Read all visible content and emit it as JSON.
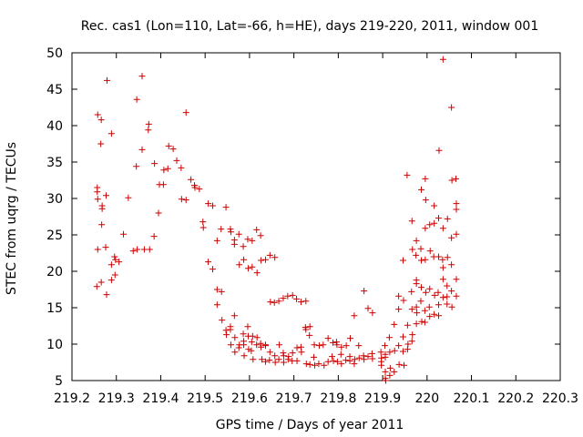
{
  "chart_data": {
    "type": "scatter",
    "title": "Rec. cas1 (Lon=110, Lat=-66, h=HE), days 219-220, 2011, window 001",
    "xlabel": "GPS time / Days of year 2011",
    "ylabel": "STEC from uqrg / TECUs",
    "xlim": [
      219.2,
      220.3
    ],
    "ylim": [
      5,
      50
    ],
    "xticks": [
      219.2,
      219.3,
      219.4,
      219.5,
      219.6,
      219.7,
      219.8,
      219.9,
      220,
      220.1,
      220.2,
      220.3
    ],
    "xtick_labels": [
      "219.2",
      "219.3",
      "219.4",
      "219.5",
      "219.6",
      "219.7",
      "219.8",
      "219.9",
      "220",
      "220.1",
      "220.2",
      "220.3"
    ],
    "yticks": [
      5,
      10,
      15,
      20,
      25,
      30,
      35,
      40,
      45,
      50
    ],
    "ytick_labels": [
      "5",
      "10",
      "15",
      "20",
      "25",
      "30",
      "35",
      "40",
      "45",
      "50"
    ],
    "grid": false,
    "marker": "+",
    "marker_color": "#cc0000",
    "points": [
      [
        219.258,
        41.5
      ],
      [
        219.266,
        40.8
      ],
      [
        219.279,
        46.2
      ],
      [
        219.289,
        38.9
      ],
      [
        219.346,
        43.6
      ],
      [
        219.358,
        46.8
      ],
      [
        219.373,
        40.2
      ],
      [
        219.372,
        39.4
      ],
      [
        219.457,
        41.8
      ],
      [
        219.257,
        31.5
      ],
      [
        219.257,
        30.9
      ],
      [
        219.258,
        29.9
      ],
      [
        219.265,
        37.5
      ],
      [
        219.268,
        29.0
      ],
      [
        219.268,
        28.6
      ],
      [
        219.267,
        26.4
      ],
      [
        219.277,
        30.4
      ],
      [
        219.258,
        23.0
      ],
      [
        219.256,
        17.9
      ],
      [
        219.266,
        18.5
      ],
      [
        219.276,
        23.3
      ],
      [
        219.278,
        16.8
      ],
      [
        219.289,
        20.9
      ],
      [
        219.296,
        22.0
      ],
      [
        219.298,
        21.6
      ],
      [
        219.297,
        19.5
      ],
      [
        219.289,
        18.8
      ],
      [
        219.306,
        21.3
      ],
      [
        219.316,
        25.1
      ],
      [
        219.327,
        30.1
      ],
      [
        219.338,
        22.8
      ],
      [
        219.345,
        34.4
      ],
      [
        219.347,
        23.0
      ],
      [
        219.358,
        36.7
      ],
      [
        219.363,
        23.0
      ],
      [
        219.375,
        23.0
      ],
      [
        219.386,
        34.8
      ],
      [
        219.385,
        24.8
      ],
      [
        219.395,
        28.0
      ],
      [
        219.397,
        31.9
      ],
      [
        219.406,
        31.9
      ],
      [
        219.407,
        33.9
      ],
      [
        219.416,
        34.1
      ],
      [
        219.418,
        37.2
      ],
      [
        219.428,
        36.8
      ],
      [
        219.436,
        35.2
      ],
      [
        219.446,
        34.2
      ],
      [
        219.447,
        29.9
      ],
      [
        219.457,
        29.8
      ],
      [
        219.468,
        32.6
      ],
      [
        219.477,
        31.5
      ],
      [
        219.476,
        31.8
      ],
      [
        219.487,
        31.3
      ],
      [
        219.495,
        26.8
      ],
      [
        219.496,
        26.0
      ],
      [
        219.507,
        29.3
      ],
      [
        219.507,
        21.3
      ],
      [
        219.517,
        29.0
      ],
      [
        219.517,
        20.3
      ],
      [
        219.527,
        24.2
      ],
      [
        219.527,
        17.5
      ],
      [
        219.527,
        15.4
      ],
      [
        219.537,
        17.2
      ],
      [
        219.536,
        25.8
      ],
      [
        219.538,
        13.3
      ],
      [
        219.547,
        28.8
      ],
      [
        219.547,
        11.9
      ],
      [
        219.548,
        11.3
      ],
      [
        219.557,
        25.8
      ],
      [
        219.558,
        25.4
      ],
      [
        219.557,
        12.4
      ],
      [
        219.557,
        12.0
      ],
      [
        219.558,
        9.9
      ],
      [
        219.566,
        24.3
      ],
      [
        219.566,
        23.7
      ],
      [
        219.566,
        13.9
      ],
      [
        219.567,
        10.9
      ],
      [
        219.567,
        8.9
      ],
      [
        219.576,
        25.1
      ],
      [
        219.577,
        20.9
      ],
      [
        219.577,
        9.9
      ],
      [
        219.576,
        9.5
      ],
      [
        219.586,
        23.4
      ],
      [
        219.587,
        21.6
      ],
      [
        219.586,
        11.4
      ],
      [
        219.587,
        10.4
      ],
      [
        219.587,
        9.9
      ],
      [
        219.588,
        8.4
      ],
      [
        219.596,
        24.4
      ],
      [
        219.597,
        20.4
      ],
      [
        219.596,
        12.4
      ],
      [
        219.597,
        11.1
      ],
      [
        219.598,
        9.3
      ],
      [
        219.606,
        24.2
      ],
      [
        219.606,
        20.6
      ],
      [
        219.607,
        11.1
      ],
      [
        219.605,
        10.3
      ],
      [
        219.604,
        9.1
      ],
      [
        219.608,
        7.9
      ],
      [
        219.616,
        25.7
      ],
      [
        219.617,
        19.8
      ],
      [
        219.617,
        10.9
      ],
      [
        219.616,
        9.9
      ],
      [
        219.625,
        24.9
      ],
      [
        219.626,
        21.5
      ],
      [
        219.625,
        10.1
      ],
      [
        219.626,
        9.6
      ],
      [
        219.628,
        7.9
      ],
      [
        219.636,
        21.6
      ],
      [
        219.636,
        9.8
      ],
      [
        219.636,
        9.9
      ],
      [
        219.636,
        7.6
      ],
      [
        219.646,
        22.2
      ],
      [
        219.647,
        15.8
      ],
      [
        219.646,
        8.9
      ],
      [
        219.645,
        7.8
      ],
      [
        219.657,
        21.9
      ],
      [
        219.656,
        15.7
      ],
      [
        219.657,
        8.4
      ],
      [
        219.658,
        7.5
      ],
      [
        219.666,
        15.9
      ],
      [
        219.667,
        9.9
      ],
      [
        219.666,
        7.9
      ],
      [
        219.676,
        16.3
      ],
      [
        219.676,
        8.8
      ],
      [
        219.677,
        8.4
      ],
      [
        219.677,
        7.5
      ],
      [
        219.686,
        16.6
      ],
      [
        219.688,
        8.3
      ],
      [
        219.687,
        7.9
      ],
      [
        219.697,
        16.7
      ],
      [
        219.697,
        8.8
      ],
      [
        219.696,
        7.7
      ],
      [
        219.706,
        16.2
      ],
      [
        219.707,
        9.5
      ],
      [
        219.707,
        7.7
      ],
      [
        219.716,
        15.8
      ],
      [
        219.716,
        9.6
      ],
      [
        219.717,
        8.9
      ],
      [
        219.727,
        15.9
      ],
      [
        219.726,
        12.3
      ],
      [
        219.727,
        12.0
      ],
      [
        219.728,
        7.3
      ],
      [
        219.736,
        12.4
      ],
      [
        219.735,
        11.2
      ],
      [
        219.736,
        7.2
      ],
      [
        219.746,
        9.9
      ],
      [
        219.745,
        8.2
      ],
      [
        219.747,
        7.1
      ],
      [
        219.757,
        9.8
      ],
      [
        219.756,
        7.3
      ],
      [
        219.766,
        9.9
      ],
      [
        219.768,
        7.1
      ],
      [
        219.777,
        10.8
      ],
      [
        219.777,
        7.6
      ],
      [
        219.788,
        10.2
      ],
      [
        219.786,
        8.3
      ],
      [
        219.789,
        7.7
      ],
      [
        219.796,
        10.3
      ],
      [
        219.797,
        9.9
      ],
      [
        219.798,
        7.6
      ],
      [
        219.807,
        9.6
      ],
      [
        219.806,
        8.6
      ],
      [
        219.807,
        7.3
      ],
      [
        219.818,
        9.8
      ],
      [
        219.817,
        7.8
      ],
      [
        219.827,
        10.8
      ],
      [
        219.826,
        8.3
      ],
      [
        219.826,
        7.7
      ],
      [
        219.836,
        13.9
      ],
      [
        219.837,
        7.9
      ],
      [
        219.836,
        7.3
      ],
      [
        219.846,
        9.8
      ],
      [
        219.847,
        8.1
      ],
      [
        219.858,
        17.3
      ],
      [
        219.857,
        8.4
      ],
      [
        219.858,
        7.9
      ],
      [
        219.867,
        14.9
      ],
      [
        219.867,
        8.3
      ],
      [
        219.877,
        14.3
      ],
      [
        219.876,
        8.7
      ],
      [
        219.877,
        8.0
      ],
      [
        219.896,
        8.9
      ],
      [
        219.897,
        8.1
      ],
      [
        219.897,
        7.6
      ],
      [
        219.897,
        7.1
      ],
      [
        219.905,
        9.8
      ],
      [
        219.906,
        8.6
      ],
      [
        219.906,
        8.2
      ],
      [
        219.906,
        6.2
      ],
      [
        219.906,
        5.3
      ],
      [
        219.907,
        5.0
      ],
      [
        219.915,
        10.9
      ],
      [
        219.916,
        8.9
      ],
      [
        219.917,
        6.7
      ],
      [
        219.916,
        5.7
      ],
      [
        219.926,
        12.7
      ],
      [
        219.927,
        9.1
      ],
      [
        219.926,
        6.2
      ],
      [
        219.936,
        14.8
      ],
      [
        219.936,
        9.8
      ],
      [
        219.937,
        7.2
      ],
      [
        219.936,
        16.6
      ],
      [
        219.946,
        21.5
      ],
      [
        219.946,
        11.0
      ],
      [
        219.946,
        9.0
      ],
      [
        219.948,
        7.1
      ],
      [
        219.947,
        16.0
      ],
      [
        219.955,
        33.2
      ],
      [
        219.956,
        12.6
      ],
      [
        219.957,
        10.0
      ],
      [
        219.956,
        9.3
      ],
      [
        219.966,
        26.9
      ],
      [
        219.967,
        23.0
      ],
      [
        219.965,
        17.2
      ],
      [
        219.966,
        14.8
      ],
      [
        219.967,
        11.3
      ],
      [
        219.966,
        10.4
      ],
      [
        219.976,
        24.2
      ],
      [
        219.975,
        22.2
      ],
      [
        219.976,
        18.8
      ],
      [
        219.976,
        18.3
      ],
      [
        219.976,
        15.1
      ],
      [
        219.977,
        14.3
      ],
      [
        219.976,
        12.8
      ],
      [
        219.987,
        31.2
      ],
      [
        219.986,
        23.1
      ],
      [
        219.987,
        21.5
      ],
      [
        219.987,
        17.8
      ],
      [
        219.986,
        15.9
      ],
      [
        219.988,
        13.1
      ],
      [
        219.996,
        32.7
      ],
      [
        219.997,
        29.8
      ],
      [
        219.996,
        25.9
      ],
      [
        219.996,
        21.6
      ],
      [
        219.997,
        17.1
      ],
      [
        219.995,
        14.6
      ],
      [
        219.995,
        13.0
      ],
      [
        220.006,
        26.4
      ],
      [
        220.007,
        22.8
      ],
      [
        220.006,
        17.6
      ],
      [
        220.005,
        15.1
      ],
      [
        220.006,
        13.8
      ],
      [
        220.016,
        29.0
      ],
      [
        220.016,
        26.6
      ],
      [
        220.015,
        22.0
      ],
      [
        220.017,
        16.7
      ],
      [
        220.016,
        14.1
      ],
      [
        220.027,
        36.6
      ],
      [
        220.026,
        27.3
      ],
      [
        220.026,
        22.0
      ],
      [
        220.025,
        17.1
      ],
      [
        220.026,
        15.4
      ],
      [
        220.026,
        13.9
      ],
      [
        220.036,
        49.1
      ],
      [
        220.036,
        25.9
      ],
      [
        220.035,
        21.6
      ],
      [
        220.036,
        20.5
      ],
      [
        220.036,
        18.9
      ],
      [
        220.036,
        16.4
      ],
      [
        220.046,
        27.2
      ],
      [
        220.046,
        21.9
      ],
      [
        220.045,
        18.0
      ],
      [
        220.045,
        16.5
      ],
      [
        220.045,
        15.5
      ],
      [
        220.055,
        42.5
      ],
      [
        220.056,
        32.5
      ],
      [
        220.055,
        24.6
      ],
      [
        220.055,
        20.9
      ],
      [
        220.055,
        17.3
      ],
      [
        220.056,
        15.1
      ],
      [
        220.065,
        32.7
      ],
      [
        220.066,
        29.3
      ],
      [
        220.066,
        28.5
      ],
      [
        220.066,
        25.1
      ],
      [
        220.066,
        18.9
      ],
      [
        220.066,
        16.6
      ]
    ]
  }
}
